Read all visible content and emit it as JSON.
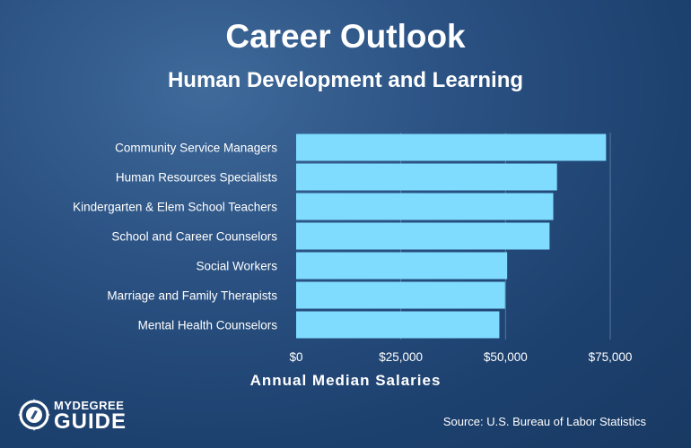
{
  "header": {
    "title": "Career Outlook",
    "subtitle": "Human Development and Learning"
  },
  "chart_data": {
    "type": "bar",
    "orientation": "horizontal",
    "title": "Career Outlook",
    "subtitle": "Human Development and Learning",
    "xlabel": "Annual Median Salaries",
    "ylabel": "",
    "categories": [
      "Community Service Managers",
      "Human Resources Specialists",
      "Kindergarten & Elem School Teachers",
      "School and Career Counselors",
      "Social Workers",
      "Marriage and Family Therapists",
      "Mental Health Counselors"
    ],
    "values": [
      74000,
      62290,
      61400,
      60510,
      50390,
      49880,
      48520
    ],
    "xlim": [
      0,
      75000
    ],
    "xticks": [
      0,
      25000,
      50000,
      75000
    ],
    "xtick_labels": [
      "$0",
      "$25,000",
      "$50,000",
      "$75,000"
    ],
    "grid": true,
    "bar_color": "#7fdcff"
  },
  "footer": {
    "source": "Source: U.S. Bureau of Labor Statistics",
    "logo_top": "MYDEGREE",
    "logo_bottom": "GUIDE"
  }
}
